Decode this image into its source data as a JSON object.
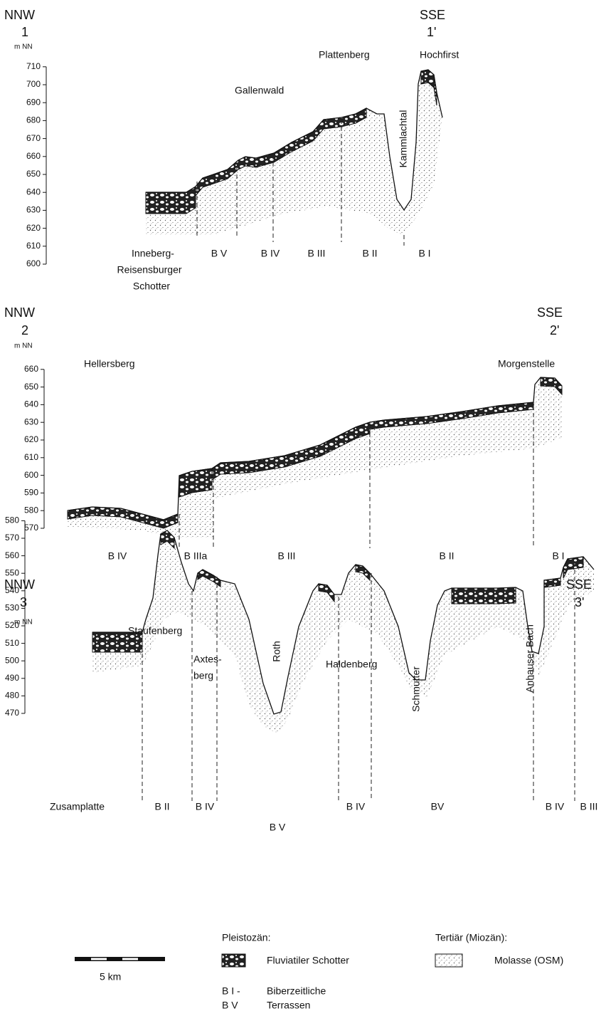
{
  "sections": [
    {
      "left_label": "NNW",
      "left_number": "1",
      "unit": "m NN",
      "right_label": "SSE",
      "right_number": "1'",
      "yticks": [
        710,
        700,
        690,
        680,
        670,
        660,
        650,
        640,
        630,
        620,
        610,
        600
      ],
      "places": [
        "Plattenberg",
        "Hochfirst",
        "Gallenwald",
        "Kammlachtal"
      ],
      "gravel_name": [
        "Inneberg-",
        "Reisensburger",
        "Schotter"
      ],
      "terraces": [
        "B V",
        "B IV",
        "B III",
        "B II",
        "B I"
      ]
    },
    {
      "left_label": "NNW",
      "left_number": "2",
      "unit": "m NN",
      "right_label": "SSE",
      "right_number": "2'",
      "yticks": [
        660,
        650,
        640,
        630,
        620,
        610,
        600,
        590,
        580,
        570
      ],
      "places": [
        "Hellersberg",
        "Morgenstelle"
      ],
      "terraces": [
        "B IV",
        "B IIIa",
        "B III",
        "B II",
        "B I"
      ]
    },
    {
      "left_label": "NNW",
      "left_number": "3",
      "unit": "m NN",
      "right_label": "SSE",
      "right_number": "3'",
      "yticks": [
        580,
        570,
        560,
        550,
        540,
        530,
        520,
        510,
        500,
        490,
        480,
        470
      ],
      "places": [
        "Staufenberg",
        "Axtes-",
        "berg",
        "Haldenberg",
        "Roth",
        "Schmutter",
        "Anhauser Bach"
      ],
      "terraces": [
        "Zusamplatte",
        "B II",
        "B IV",
        "B V",
        "B IV",
        "BV",
        "B IV",
        "B III"
      ]
    }
  ],
  "legend": {
    "pleistocene": "Pleistozän:",
    "gravel": "Fluviatiler Schotter",
    "tertiary": "Tertiär (Miozän):",
    "molasse": "Molasse (OSM)",
    "scale": "5 km",
    "range_top": "B I -",
    "range_bottom": "B V",
    "terraces_top": "Biberzeitliche",
    "terraces_bottom": "Terrassen"
  }
}
